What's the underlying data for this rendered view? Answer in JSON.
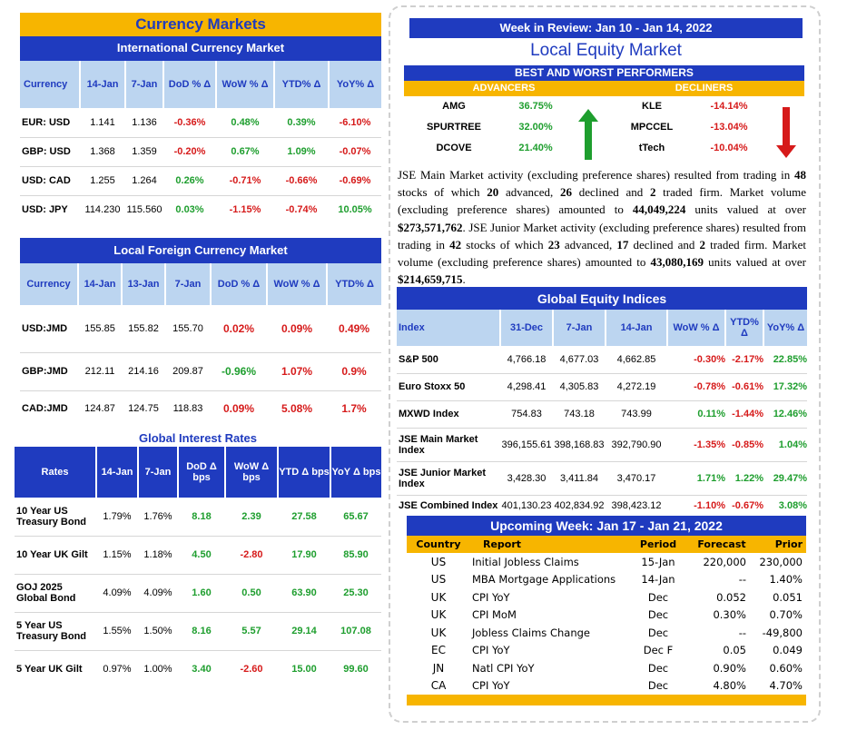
{
  "currency_markets": {
    "title": "Currency Markets",
    "intl_title": "International Currency Market",
    "intl_headers": [
      "Currency",
      "14-Jan",
      "7-Jan",
      "DoD % Δ",
      "WoW % Δ",
      "YTD% Δ",
      "YoY% Δ"
    ],
    "intl_rows": [
      {
        "name": "EUR: USD",
        "a": "1.141",
        "b": "1.136",
        "dod": "-0.36%",
        "wow": "0.48%",
        "ytd": "0.39%",
        "yoy": "-6.10%"
      },
      {
        "name": "GBP: USD",
        "a": "1.368",
        "b": "1.359",
        "dod": "-0.20%",
        "wow": "0.67%",
        "ytd": "1.09%",
        "yoy": "-0.07%"
      },
      {
        "name": "USD: CAD",
        "a": "1.255",
        "b": "1.264",
        "dod": "0.26%",
        "wow": "-0.71%",
        "ytd": "-0.66%",
        "yoy": "-0.69%"
      },
      {
        "name": "USD: JPY",
        "a": "114.230",
        "b": "115.560",
        "dod": "0.03%",
        "wow": "-1.15%",
        "ytd": "-0.74%",
        "yoy": "10.05%"
      }
    ],
    "local_title": "Local Foreign Currency Market",
    "local_headers": [
      "Currency",
      "14-Jan",
      "13-Jan",
      "7-Jan",
      "DoD % Δ",
      "WoW % Δ",
      "YTD% Δ"
    ],
    "local_rows": [
      {
        "name": "USD:JMD",
        "a": "155.85",
        "b": "155.82",
        "c": "155.70",
        "dod": "0.02%",
        "wow": "0.09%",
        "ytd": "0.49%"
      },
      {
        "name": "GBP:JMD",
        "a": "212.11",
        "b": "214.16",
        "c": "209.87",
        "dod": "-0.96%",
        "wow": "1.07%",
        "ytd": "0.9%"
      },
      {
        "name": "CAD:JMD",
        "a": "124.87",
        "b": "124.75",
        "c": "118.83",
        "dod": "0.09%",
        "wow": "5.08%",
        "ytd": "1.7%"
      }
    ]
  },
  "interest": {
    "title": "Global Interest Rates",
    "headers": [
      "Rates",
      "14-Jan",
      "7-Jan",
      "DoD Δ bps",
      "WoW Δ bps",
      "YTD Δ bps",
      "YoY Δ bps"
    ],
    "rows": [
      {
        "name": "10 Year US Treasury Bond",
        "a": "1.79%",
        "b": "1.76%",
        "dod": "8.18",
        "wow": "2.39",
        "ytd": "27.58",
        "yoy": "65.67"
      },
      {
        "name": "10 Year UK Gilt",
        "a": "1.15%",
        "b": "1.18%",
        "dod": "4.50",
        "wow": "-2.80",
        "ytd": "17.90",
        "yoy": "85.90"
      },
      {
        "name": "GOJ 2025 Global Bond",
        "a": "4.09%",
        "b": "4.09%",
        "dod": "1.60",
        "wow": "0.50",
        "ytd": "63.90",
        "yoy": "25.30"
      },
      {
        "name": "5 Year US Treasury Bond",
        "a": "1.55%",
        "b": "1.50%",
        "dod": "8.16",
        "wow": "5.57",
        "ytd": "29.14",
        "yoy": "107.08"
      },
      {
        "name": "5 Year UK Gilt",
        "a": "0.97%",
        "b": "1.00%",
        "dod": "3.40",
        "wow": "-2.60",
        "ytd": "15.00",
        "yoy": "99.60"
      }
    ]
  },
  "review": {
    "title": "Week in Review:  Jan 10 - Jan 14, 2022",
    "subtitle": "Local Equity Market",
    "bw_title": "BEST AND WORST PERFORMERS",
    "adv_label": "ADVANCERS",
    "dec_label": "DECLINERS",
    "advancers": [
      {
        "name": "AMG",
        "pct": "36.75%"
      },
      {
        "name": "SPURTREE",
        "pct": "32.00%"
      },
      {
        "name": "DCOVE",
        "pct": "21.40%"
      }
    ],
    "decliners": [
      {
        "name": "KLE",
        "pct": "-14.14%"
      },
      {
        "name": "MPCCEL",
        "pct": "-13.04%"
      },
      {
        "name": "tTech",
        "pct": "-10.04%"
      }
    ],
    "para": {
      "p1": "JSE Main Market activity (excluding preference shares) resulted from trading in ",
      "n1": "48",
      "p2": " stocks of which ",
      "n2": "20",
      "p3": " advanced, ",
      "n3": "26",
      "p4": " declined and ",
      "n4": "2",
      "p5": " traded firm. Market volume (excluding preference shares) amounted to ",
      "n5": "44,049,224",
      "p6": " units valued at over ",
      "n6": "$273,571,762",
      "p7": ". JSE Junior Market activity (excluding preference shares) resulted from trading in ",
      "n7": "42",
      "p8": " stocks of which ",
      "n8": "23",
      "p9": " advanced, ",
      "n9": "17",
      "p10": " declined and ",
      "n10": "2",
      "p11": " traded firm. Market volume (excluding preference shares) amounted to ",
      "n11": "43,080,169",
      "p12": " units valued at over ",
      "n12": "$214,659,715",
      "p13": "."
    }
  },
  "equity": {
    "title": "Global Equity Indices",
    "headers": [
      "Index",
      "31-Dec",
      "7-Jan",
      "14-Jan",
      "WoW % Δ",
      "YTD% Δ",
      "YoY% Δ"
    ],
    "rows": [
      {
        "name": "S&P 500",
        "a": "4,766.18",
        "b": "4,677.03",
        "c": "4,662.85",
        "wow": "-0.30%",
        "ytd": "-2.17%",
        "yoy": "22.85%"
      },
      {
        "name": "Euro Stoxx 50",
        "a": "4,298.41",
        "b": "4,305.83",
        "c": "4,272.19",
        "wow": "-0.78%",
        "ytd": "-0.61%",
        "yoy": "17.32%"
      },
      {
        "name": "MXWD  Index",
        "a": "754.83",
        "b": "743.18",
        "c": "743.99",
        "wow": "0.11%",
        "ytd": "-1.44%",
        "yoy": "12.46%"
      },
      {
        "name": "JSE Main Market Index",
        "a": "396,155.61",
        "b": "398,168.83",
        "c": "392,790.90",
        "wow": "-1.35%",
        "ytd": "-0.85%",
        "yoy": "1.04%"
      },
      {
        "name": "JSE Junior Market Index",
        "a": "3,428.30",
        "b": "3,411.84",
        "c": "3,470.17",
        "wow": "1.71%",
        "ytd": "1.22%",
        "yoy": "29.47%"
      },
      {
        "name": "JSE Combined Index",
        "a": "401,130.23",
        "b": "402,834.92",
        "c": "398,423.12",
        "wow": "-1.10%",
        "ytd": "-0.67%",
        "yoy": "3.08%"
      }
    ]
  },
  "upcoming": {
    "title": "Upcoming Week:  Jan 17 - Jan 21, 2022",
    "headers": [
      "Country",
      "Report",
      "Period",
      "Forecast",
      "Prior"
    ],
    "rows": [
      {
        "country": "US",
        "report": "Initial Jobless Claims",
        "period": "15-Jan",
        "forecast": "220,000",
        "prior": "230,000"
      },
      {
        "country": "US",
        "report": "MBA Mortgage Applications",
        "period": "14-Jan",
        "forecast": "--",
        "prior": "1.40%"
      },
      {
        "country": "UK",
        "report": "CPI YoY",
        "period": "Dec",
        "forecast": "0.052",
        "prior": "0.051"
      },
      {
        "country": "UK",
        "report": "CPI MoM",
        "period": "Dec",
        "forecast": "0.30%",
        "prior": "0.70%"
      },
      {
        "country": "UK",
        "report": "Jobless Claims Change",
        "period": "Dec",
        "forecast": "--",
        "prior": "-49,800"
      },
      {
        "country": "EC",
        "report": "CPI YoY",
        "period": "Dec F",
        "forecast": "0.05",
        "prior": "0.049"
      },
      {
        "country": "JN",
        "report": "Natl CPI YoY",
        "period": "Dec",
        "forecast": "0.90%",
        "prior": "0.60%"
      },
      {
        "country": "CA",
        "report": "CPI YoY",
        "period": "Dec",
        "forecast": "4.80%",
        "prior": "4.70%"
      }
    ]
  },
  "colors": {
    "blue": "#1f3bbf",
    "gold": "#f7b500",
    "green": "#1e9e2e",
    "red": "#d61a1a",
    "lightblue": "#bcd5f0"
  },
  "icons": [
    "green-up-arrow-icon",
    "red-down-arrow-icon"
  ]
}
